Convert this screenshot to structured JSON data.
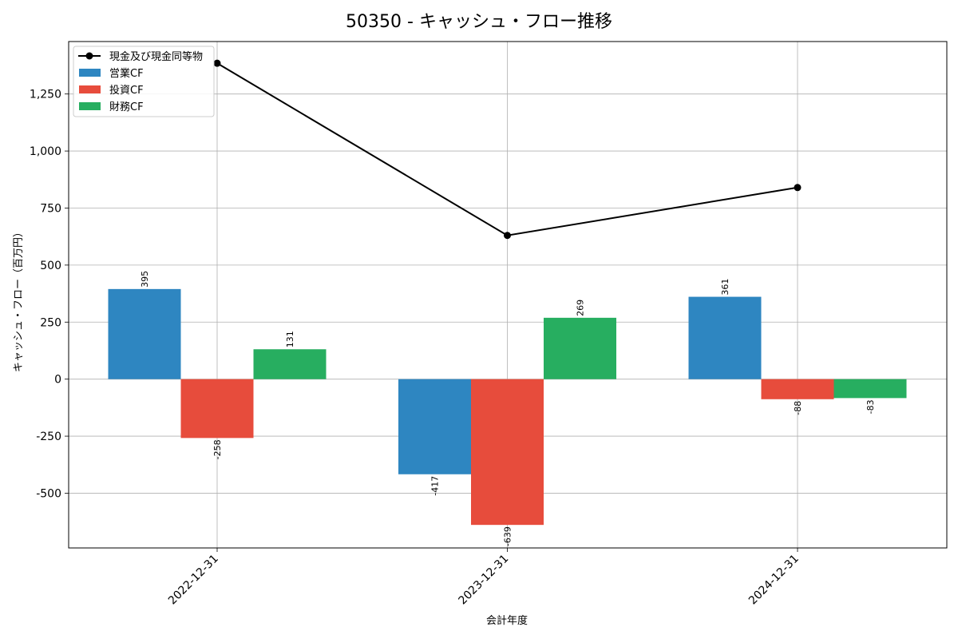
{
  "chart_data": {
    "type": "bar",
    "title": "50350 - キャッシュ・フロー推移",
    "xlabel": "会計年度",
    "ylabel": "キャッシュ・フロー（百万円）",
    "categories": [
      "2022-12-31",
      "2023-12-31",
      "2024-12-31"
    ],
    "ylim": [
      -740,
      1480
    ],
    "yticks": [
      -500,
      -250,
      0,
      250,
      500,
      750,
      1000,
      1250
    ],
    "ytick_labels": [
      "-500",
      "-250",
      "0",
      "250",
      "500",
      "750",
      "1,000",
      "1,250"
    ],
    "grid": true,
    "legend_position": "top-left",
    "series": [
      {
        "name": "営業CF",
        "type": "bar",
        "color": "#2e86c1",
        "values": [
          395,
          -417,
          361
        ],
        "labels": [
          "395",
          "-417",
          "361"
        ]
      },
      {
        "name": "投資CF",
        "type": "bar",
        "color": "#e74c3c",
        "values": [
          -258,
          -639,
          -88
        ],
        "labels": [
          "-258",
          "-639",
          "-88"
        ]
      },
      {
        "name": "財務CF",
        "type": "bar",
        "color": "#27ae60",
        "values": [
          131,
          269,
          -83
        ],
        "labels": [
          "131",
          "269",
          "-83"
        ]
      }
    ],
    "line": {
      "name": "現金及び現金同等物",
      "type": "line",
      "color": "#000000",
      "values": [
        1385,
        630,
        840
      ]
    }
  }
}
